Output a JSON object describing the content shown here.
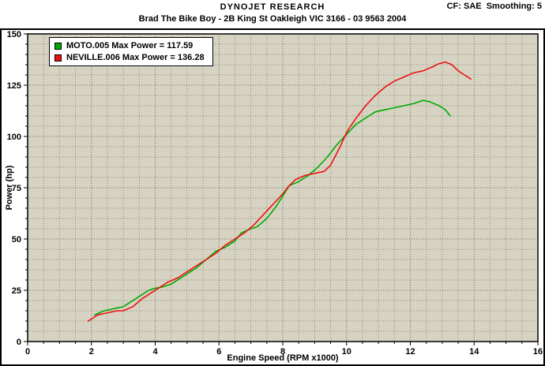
{
  "header": {
    "brand": "DYNOJET RESEARCH",
    "cf_smoothing": "CF: SAE  Smoothing: 5",
    "subtitle": "Brad The Bike Boy - 2B King St Oakleigh VIC 3166 - 03 9563 2004"
  },
  "legend": {
    "items": [
      {
        "label": "MOTO.005 Max Power = 117.59"
      },
      {
        "label": "NEVILLE.006 Max Power = 136.28"
      }
    ]
  },
  "chart_data": {
    "type": "line",
    "title": "",
    "xlabel": "Engine Speed (RPM x1000)",
    "ylabel": "Power (hp)",
    "xlim": [
      0,
      16
    ],
    "ylim": [
      0,
      150
    ],
    "xticks": [
      0,
      2,
      4,
      6,
      8,
      10,
      12,
      14,
      16
    ],
    "yticks": [
      0,
      25,
      50,
      75,
      100,
      125,
      150
    ],
    "x_minor_step": 0.5,
    "y_minor_step": 5,
    "grid": "dotted",
    "legend_position": "top-left",
    "colors": {
      "plot_bg": "#D7D3C3",
      "grid_minor": "#8F8D76",
      "grid_major": "#6E6C58",
      "frame": "#000000"
    },
    "series": [
      {
        "name": "MOTO.005",
        "max_power": 117.59,
        "color": "#00AA00",
        "x": [
          2.1,
          2.4,
          2.7,
          3.0,
          3.2,
          3.5,
          3.8,
          4.0,
          4.2,
          4.5,
          4.8,
          5.0,
          5.3,
          5.6,
          5.9,
          6.2,
          6.5,
          6.7,
          7.0,
          7.2,
          7.5,
          7.8,
          8.0,
          8.2,
          8.5,
          8.8,
          9.1,
          9.4,
          9.7,
          10.0,
          10.3,
          10.6,
          10.9,
          11.2,
          11.5,
          11.8,
          12.1,
          12.4,
          12.6,
          12.9,
          13.1,
          13.25
        ],
        "y": [
          13,
          15,
          16,
          17,
          19,
          22,
          25,
          26,
          26.5,
          28,
          31,
          33,
          36,
          40,
          44,
          46,
          49,
          53,
          55,
          56,
          60,
          66,
          71,
          76,
          78,
          81,
          85,
          90,
          96,
          101,
          106,
          109,
          112,
          113,
          114,
          115,
          116,
          117.6,
          117,
          115,
          113,
          110
        ]
      },
      {
        "name": "NEVILLE.006",
        "max_power": 136.28,
        "color": "#EE1111",
        "x": [
          1.9,
          2.2,
          2.5,
          2.8,
          3.0,
          3.3,
          3.6,
          3.9,
          4.1,
          4.4,
          4.7,
          5.0,
          5.3,
          5.6,
          5.9,
          6.2,
          6.5,
          6.8,
          7.1,
          7.4,
          7.7,
          8.0,
          8.2,
          8.4,
          8.7,
          9.0,
          9.3,
          9.5,
          9.8,
          10.0,
          10.3,
          10.6,
          10.9,
          11.2,
          11.5,
          11.8,
          12.1,
          12.4,
          12.7,
          12.9,
          13.1,
          13.3,
          13.5,
          13.7,
          13.9
        ],
        "y": [
          10,
          13,
          14,
          15,
          15,
          17,
          21,
          24,
          26,
          29,
          31,
          34,
          37,
          40,
          43,
          47,
          50,
          53,
          57,
          62,
          67,
          72,
          76,
          79,
          81,
          82,
          83,
          86,
          95,
          102,
          109,
          115,
          120,
          124,
          127,
          129,
          131,
          132,
          134,
          135.5,
          136.3,
          135,
          132,
          130,
          128
        ]
      }
    ]
  }
}
